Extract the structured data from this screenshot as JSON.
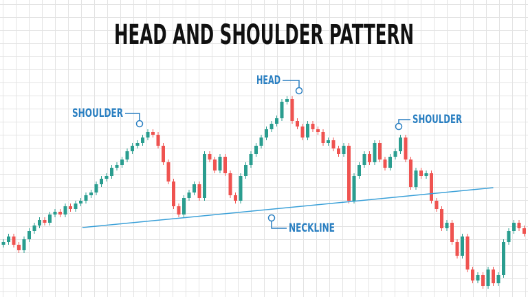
{
  "chart_data": {
    "type": "candlestick",
    "title": "HEAD AND SHOULDER PATTERN",
    "up_color": "#2a9d8f",
    "down_color": "#ef5350",
    "ylim": [
      0,
      108
    ],
    "candles": [
      [
        19,
        21,
        18,
        20
      ],
      [
        20,
        23,
        19,
        22
      ],
      [
        22,
        23,
        18,
        19
      ],
      [
        19,
        20,
        16,
        17
      ],
      [
        17,
        22,
        16,
        21
      ],
      [
        21,
        25,
        20,
        24
      ],
      [
        24,
        27,
        23,
        26
      ],
      [
        26,
        29,
        25,
        28
      ],
      [
        28,
        29,
        26,
        27
      ],
      [
        27,
        31,
        26,
        30
      ],
      [
        30,
        32,
        29,
        31
      ],
      [
        31,
        32,
        29,
        30
      ],
      [
        30,
        34,
        29,
        33
      ],
      [
        33,
        34,
        31,
        32
      ],
      [
        32,
        35,
        31,
        34
      ],
      [
        34,
        36,
        33,
        35
      ],
      [
        35,
        38,
        34,
        37
      ],
      [
        37,
        39,
        36,
        38
      ],
      [
        38,
        42,
        37,
        41
      ],
      [
        41,
        44,
        40,
        43
      ],
      [
        43,
        45,
        42,
        44
      ],
      [
        44,
        48,
        43,
        47
      ],
      [
        47,
        49,
        46,
        48
      ],
      [
        48,
        51,
        47,
        50
      ],
      [
        50,
        54,
        49,
        53
      ],
      [
        53,
        56,
        52,
        55
      ],
      [
        55,
        57,
        54,
        56
      ],
      [
        56,
        59,
        55,
        58
      ],
      [
        58,
        61,
        57,
        60
      ],
      [
        60,
        61,
        58,
        59
      ],
      [
        59,
        60,
        54,
        55
      ],
      [
        55,
        56,
        48,
        49
      ],
      [
        49,
        50,
        41,
        42
      ],
      [
        42,
        43,
        32,
        33
      ],
      [
        33,
        34,
        29,
        30
      ],
      [
        30,
        37,
        29,
        36
      ],
      [
        36,
        39,
        35,
        38
      ],
      [
        38,
        42,
        37,
        41
      ],
      [
        41,
        42,
        35,
        36
      ],
      [
        36,
        53,
        35,
        52
      ],
      [
        52,
        53,
        49,
        50
      ],
      [
        50,
        51,
        45,
        46
      ],
      [
        46,
        52,
        45,
        51
      ],
      [
        51,
        52,
        44,
        45
      ],
      [
        45,
        46,
        36,
        37
      ],
      [
        37,
        38,
        34,
        35
      ],
      [
        35,
        45,
        34,
        44
      ],
      [
        44,
        49,
        43,
        48
      ],
      [
        48,
        53,
        47,
        52
      ],
      [
        52,
        56,
        51,
        55
      ],
      [
        55,
        59,
        54,
        58
      ],
      [
        58,
        62,
        57,
        61
      ],
      [
        61,
        64,
        60,
        63
      ],
      [
        63,
        66,
        62,
        65
      ],
      [
        65,
        72,
        64,
        71
      ],
      [
        71,
        73,
        70,
        72
      ],
      [
        72,
        73,
        63,
        64
      ],
      [
        64,
        65,
        61,
        62
      ],
      [
        62,
        63,
        57,
        58
      ],
      [
        58,
        64,
        57,
        63
      ],
      [
        63,
        64,
        60,
        61
      ],
      [
        61,
        62,
        59,
        60
      ],
      [
        60,
        61,
        55,
        56
      ],
      [
        56,
        58,
        55,
        57
      ],
      [
        57,
        58,
        53,
        54
      ],
      [
        54,
        55,
        51,
        52
      ],
      [
        52,
        56,
        51,
        55
      ],
      [
        55,
        56,
        34,
        35
      ],
      [
        35,
        45,
        34,
        44
      ],
      [
        44,
        49,
        43,
        48
      ],
      [
        48,
        53,
        47,
        52
      ],
      [
        52,
        53,
        48,
        49
      ],
      [
        49,
        57,
        48,
        56
      ],
      [
        56,
        57,
        49,
        50
      ],
      [
        50,
        51,
        46,
        47
      ],
      [
        47,
        52,
        46,
        51
      ],
      [
        51,
        54,
        50,
        53
      ],
      [
        53,
        59,
        52,
        58
      ],
      [
        58,
        59,
        49,
        50
      ],
      [
        50,
        51,
        39,
        40
      ],
      [
        40,
        47,
        39,
        46
      ],
      [
        46,
        47,
        43,
        44
      ],
      [
        44,
        46,
        43,
        45
      ],
      [
        45,
        46,
        34,
        35
      ],
      [
        35,
        36,
        31,
        32
      ],
      [
        32,
        33,
        24,
        25
      ],
      [
        25,
        28,
        24,
        27
      ],
      [
        27,
        28,
        19,
        20
      ],
      [
        20,
        21,
        14,
        15
      ],
      [
        15,
        23,
        14,
        22
      ],
      [
        22,
        23,
        9,
        10
      ],
      [
        10,
        11,
        5,
        6
      ],
      [
        6,
        9,
        5,
        8
      ],
      [
        8,
        9,
        3,
        4
      ],
      [
        4,
        11,
        3,
        10
      ],
      [
        10,
        11,
        4,
        5
      ],
      [
        5,
        9,
        4,
        8
      ],
      [
        8,
        21,
        7,
        20
      ],
      [
        20,
        25,
        19,
        24
      ],
      [
        24,
        28,
        23,
        27
      ],
      [
        27,
        28,
        24,
        25
      ],
      [
        25,
        26,
        22,
        23
      ]
    ],
    "neckline": {
      "x": [
        15.3,
        95
      ],
      "values": [
        25.25,
        39.75
      ],
      "color": "#3aa0d8"
    },
    "annotations": [
      "SHOULDER",
      "HEAD",
      "SHOULDER",
      "NECKLINE"
    ]
  }
}
